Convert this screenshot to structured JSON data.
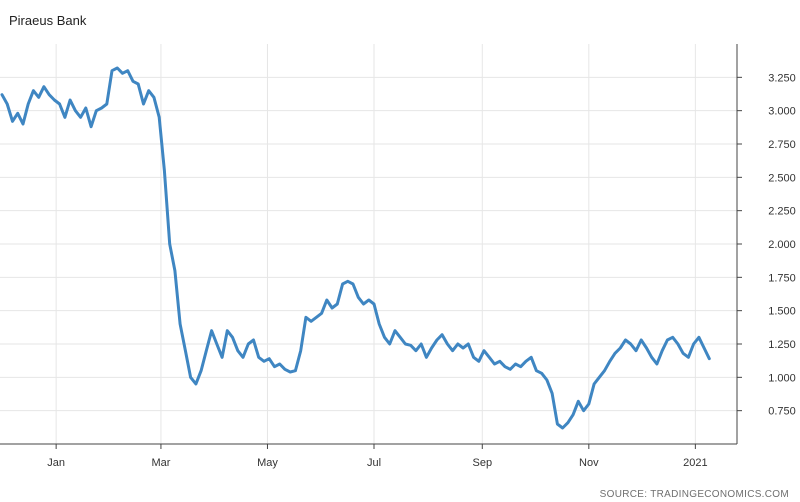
{
  "chart_data": {
    "type": "line",
    "title": "Piraeus Bank",
    "source": "SOURCE: TRADINGECONOMICS.COM",
    "xlabel": "",
    "ylabel": "",
    "ylim": [
      0.5,
      3.5
    ],
    "grid": true,
    "y_ticks": [
      {
        "value": 0.75,
        "label": "0.750"
      },
      {
        "value": 1.0,
        "label": "1.000"
      },
      {
        "value": 1.25,
        "label": "1.250"
      },
      {
        "value": 1.5,
        "label": "1.500"
      },
      {
        "value": 1.75,
        "label": "1.750"
      },
      {
        "value": 2.0,
        "label": "2.000"
      },
      {
        "value": 2.25,
        "label": "2.250"
      },
      {
        "value": 2.5,
        "label": "2.500"
      },
      {
        "value": 2.75,
        "label": "2.750"
      },
      {
        "value": 3.0,
        "label": "3.000"
      },
      {
        "value": 3.25,
        "label": "3.250"
      }
    ],
    "x_ticks": [
      "Jan",
      "Mar",
      "May",
      "Jul",
      "Sep",
      "Nov",
      "2021"
    ],
    "series": [
      {
        "color": "#3f86c2",
        "x": [
          "2019-12-01",
          "2019-12-04",
          "2019-12-07",
          "2019-12-10",
          "2019-12-13",
          "2019-12-16",
          "2019-12-19",
          "2019-12-22",
          "2019-12-25",
          "2019-12-28",
          "2019-12-31",
          "2020-01-03",
          "2020-01-06",
          "2020-01-09",
          "2020-01-12",
          "2020-01-15",
          "2020-01-18",
          "2020-01-21",
          "2020-01-24",
          "2020-01-27",
          "2020-01-30",
          "2020-02-02",
          "2020-02-05",
          "2020-02-08",
          "2020-02-11",
          "2020-02-14",
          "2020-02-17",
          "2020-02-20",
          "2020-02-23",
          "2020-02-26",
          "2020-02-29",
          "2020-03-03",
          "2020-03-06",
          "2020-03-09",
          "2020-03-12",
          "2020-03-15",
          "2020-03-18",
          "2020-03-21",
          "2020-03-24",
          "2020-03-27",
          "2020-03-30",
          "2020-04-02",
          "2020-04-05",
          "2020-04-08",
          "2020-04-11",
          "2020-04-14",
          "2020-04-17",
          "2020-04-20",
          "2020-04-23",
          "2020-04-26",
          "2020-04-29",
          "2020-05-02",
          "2020-05-05",
          "2020-05-08",
          "2020-05-11",
          "2020-05-14",
          "2020-05-17",
          "2020-05-20",
          "2020-05-23",
          "2020-05-26",
          "2020-05-29",
          "2020-06-01",
          "2020-06-04",
          "2020-06-07",
          "2020-06-10",
          "2020-06-13",
          "2020-06-16",
          "2020-06-19",
          "2020-06-22",
          "2020-06-25",
          "2020-06-28",
          "2020-07-01",
          "2020-07-04",
          "2020-07-07",
          "2020-07-10",
          "2020-07-13",
          "2020-07-16",
          "2020-07-19",
          "2020-07-22",
          "2020-07-25",
          "2020-07-28",
          "2020-07-31",
          "2020-08-03",
          "2020-08-06",
          "2020-08-09",
          "2020-08-12",
          "2020-08-15",
          "2020-08-18",
          "2020-08-21",
          "2020-08-24",
          "2020-08-27",
          "2020-08-30",
          "2020-09-02",
          "2020-09-05",
          "2020-09-08",
          "2020-09-11",
          "2020-09-14",
          "2020-09-17",
          "2020-09-20",
          "2020-09-23",
          "2020-09-26",
          "2020-09-29",
          "2020-10-02",
          "2020-10-05",
          "2020-10-08",
          "2020-10-11",
          "2020-10-14",
          "2020-10-17",
          "2020-10-20",
          "2020-10-23",
          "2020-10-26",
          "2020-10-29",
          "2020-11-01",
          "2020-11-04",
          "2020-11-07",
          "2020-11-10",
          "2020-11-13",
          "2020-11-16",
          "2020-11-19",
          "2020-11-22",
          "2020-11-25",
          "2020-11-28",
          "2020-12-01",
          "2020-12-04",
          "2020-12-07",
          "2020-12-10",
          "2020-12-13",
          "2020-12-16",
          "2020-12-19",
          "2020-12-22",
          "2020-12-25",
          "2020-12-28",
          "2020-12-31",
          "2021-01-03",
          "2021-01-06",
          "2021-01-09"
        ],
        "y": [
          3.12,
          3.05,
          2.92,
          2.98,
          2.9,
          3.05,
          3.15,
          3.1,
          3.18,
          3.12,
          3.08,
          3.05,
          2.95,
          3.08,
          3.0,
          2.95,
          3.02,
          2.88,
          3.0,
          3.02,
          3.05,
          3.3,
          3.32,
          3.28,
          3.3,
          3.22,
          3.2,
          3.05,
          3.15,
          3.1,
          2.95,
          2.55,
          2.0,
          1.8,
          1.4,
          1.2,
          1.0,
          0.95,
          1.05,
          1.2,
          1.35,
          1.25,
          1.15,
          1.35,
          1.3,
          1.2,
          1.15,
          1.25,
          1.28,
          1.15,
          1.12,
          1.14,
          1.08,
          1.1,
          1.06,
          1.04,
          1.05,
          1.2,
          1.45,
          1.42,
          1.45,
          1.48,
          1.58,
          1.52,
          1.55,
          1.7,
          1.72,
          1.7,
          1.6,
          1.55,
          1.58,
          1.55,
          1.4,
          1.3,
          1.25,
          1.35,
          1.3,
          1.25,
          1.24,
          1.2,
          1.25,
          1.15,
          1.22,
          1.28,
          1.32,
          1.25,
          1.2,
          1.25,
          1.22,
          1.25,
          1.15,
          1.12,
          1.2,
          1.15,
          1.1,
          1.12,
          1.08,
          1.06,
          1.1,
          1.08,
          1.12,
          1.15,
          1.05,
          1.03,
          0.98,
          0.88,
          0.65,
          0.62,
          0.66,
          0.72,
          0.82,
          0.75,
          0.8,
          0.95,
          1.0,
          1.05,
          1.12,
          1.18,
          1.22,
          1.28,
          1.25,
          1.2,
          1.28,
          1.22,
          1.15,
          1.1,
          1.2,
          1.28,
          1.3,
          1.25,
          1.18,
          1.15,
          1.25,
          1.3,
          1.22,
          1.14
        ]
      }
    ]
  }
}
